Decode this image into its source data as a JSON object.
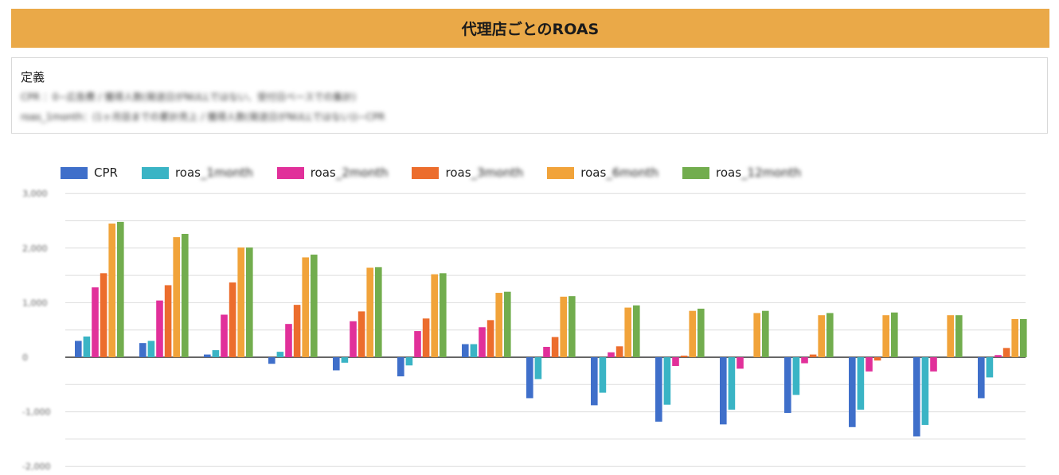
{
  "page": {
    "title": "代理店ごとのROAS"
  },
  "definition": {
    "label": "定義",
    "line1": "CPR              ：0−広告費 / 獲得人数(発送日がNULLではない、受付日ベースでの集計)",
    "line2": "roas_1month：(1ヶ月目までの累計売上 / 獲得人数(発送日がNULLではない))−CPR"
  },
  "chart_data": {
    "type": "bar",
    "series": [
      {
        "name": "CPR",
        "name_prefix": "CPR",
        "name_suffix": "",
        "color": "#3f6fca",
        "values": [
          300,
          260,
          50,
          -120,
          -240,
          -350,
          240,
          -750,
          -880,
          -1180,
          -1230,
          -1020,
          -1280,
          -1450,
          -750
        ]
      },
      {
        "name": "roas_1month",
        "name_prefix": "roas",
        "name_suffix": "_1month",
        "color": "#3ab4c5",
        "values": [
          380,
          300,
          130,
          100,
          -100,
          -150,
          240,
          -400,
          -650,
          -870,
          -960,
          -690,
          -960,
          -1240,
          -370
        ]
      },
      {
        "name": "roas_2month",
        "name_prefix": "roas",
        "name_suffix": "_2month",
        "color": "#e1309a",
        "values": [
          1280,
          1040,
          780,
          610,
          660,
          480,
          550,
          190,
          90,
          -160,
          -210,
          -110,
          -260,
          -260,
          40
        ]
      },
      {
        "name": "roas_3month",
        "name_prefix": "roas",
        "name_suffix": "_3month",
        "color": "#ec6d2d",
        "values": [
          1540,
          1320,
          1370,
          960,
          840,
          710,
          680,
          370,
          200,
          30,
          0,
          50,
          -60,
          0,
          170
        ]
      },
      {
        "name": "roas_6month",
        "name_prefix": "roas",
        "name_suffix": "_6month",
        "color": "#f1a33a",
        "values": [
          2450,
          2200,
          2010,
          1830,
          1640,
          1520,
          1180,
          1110,
          910,
          850,
          810,
          770,
          770,
          770,
          700
        ]
      },
      {
        "name": "roas_12month",
        "name_prefix": "roas",
        "name_suffix": "_12month",
        "color": "#72ad4e",
        "values": [
          2480,
          2260,
          2010,
          1880,
          1650,
          1540,
          1200,
          1120,
          950,
          890,
          850,
          810,
          820,
          770,
          700
        ]
      }
    ],
    "categories": [
      "",
      "",
      "",
      "",
      "",
      "",
      "",
      "",
      "",
      "",
      "",
      "",
      "",
      "",
      ""
    ],
    "ylim": [
      -2000,
      3000
    ],
    "yticks": [
      -2000,
      -1000,
      0,
      1000,
      2000,
      3000
    ],
    "ytick_labels": [
      "-2,000",
      "-1,000",
      "0",
      "1,000",
      "2,000",
      "3,000"
    ],
    "grid": true,
    "legend_position": "top-left",
    "title": "",
    "xlabel": "",
    "ylabel": ""
  }
}
